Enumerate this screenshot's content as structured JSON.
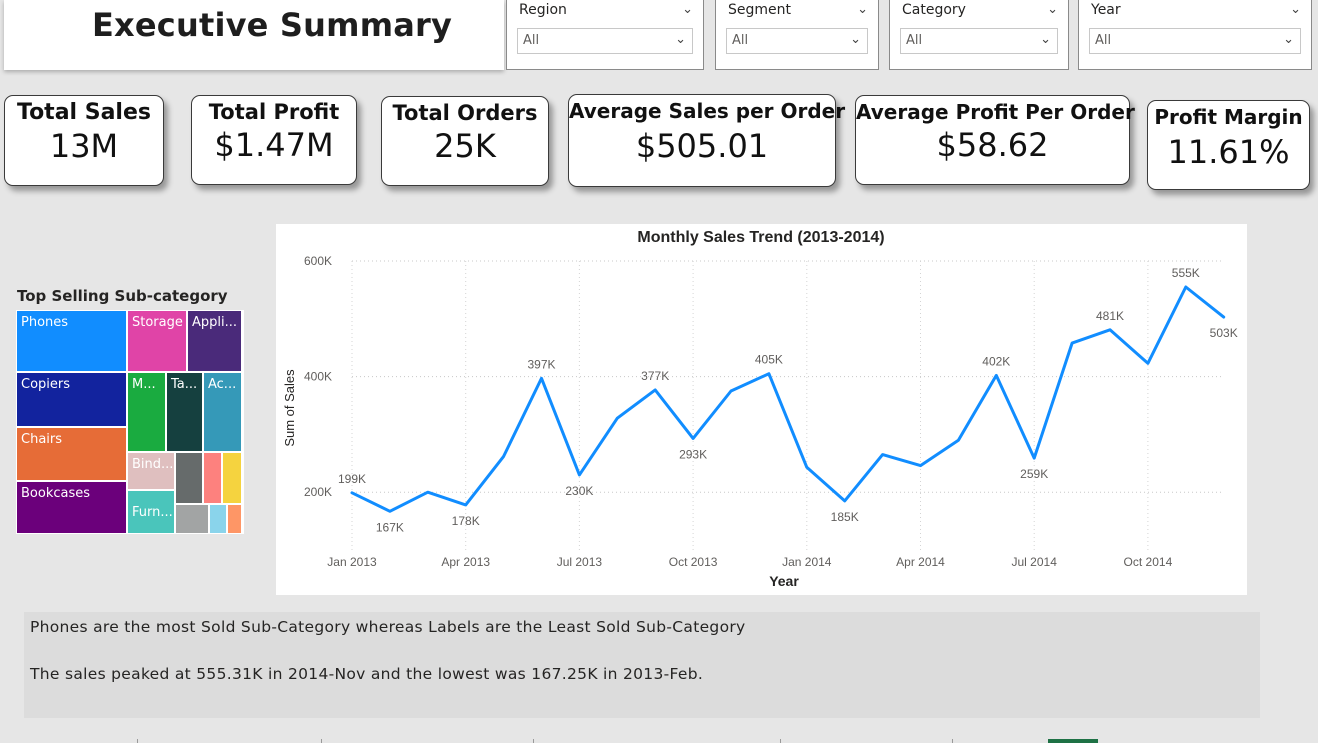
{
  "header": {
    "title": "Executive Summary"
  },
  "slicers": [
    {
      "label": "Region",
      "value": "All"
    },
    {
      "label": "Segment",
      "value": "All"
    },
    {
      "label": "Category",
      "value": "All"
    },
    {
      "label": "Year",
      "value": "All"
    }
  ],
  "kpis": [
    {
      "label": "Total Sales",
      "value": "13M"
    },
    {
      "label": "Total Profit",
      "value": "$1.47M"
    },
    {
      "label": "Total Orders",
      "value": "25K"
    },
    {
      "label": "Average Sales per Order",
      "value": "$505.01"
    },
    {
      "label": "Average Profit Per Order",
      "value": "$58.62"
    },
    {
      "label": "Profit Margin",
      "value": "11.61%"
    }
  ],
  "treemap": {
    "title": "Top Selling Sub-category",
    "items": [
      {
        "label": "Phones",
        "color": "#118dff"
      },
      {
        "label": "Storage",
        "color": "#e044a7"
      },
      {
        "label": "Appli...",
        "color": "#4a2a7a"
      },
      {
        "label": "Copiers",
        "color": "#12239e"
      },
      {
        "label": "M...",
        "color": "#1aab40"
      },
      {
        "label": "Ta...",
        "color": "#15403f"
      },
      {
        "label": "Ac...",
        "color": "#3599b8"
      },
      {
        "label": "Chairs",
        "color": "#e66c37"
      },
      {
        "label": "Bind...",
        "color": "#dfbfbf"
      },
      {
        "label": "",
        "color": "#666b6b"
      },
      {
        "label": "",
        "color": "#fd817e"
      },
      {
        "label": "",
        "color": "#f5d33f"
      },
      {
        "label": "Bookcases",
        "color": "#6b007b"
      },
      {
        "label": "Furn...",
        "color": "#4ac5bb"
      },
      {
        "label": "",
        "color": "#a2a4a4"
      },
      {
        "label": "",
        "color": "#8ad4eb"
      },
      {
        "label": "",
        "color": "#fe9666"
      }
    ]
  },
  "chart_data": {
    "type": "line",
    "title": "Monthly Sales Trend (2013-2014)",
    "xlabel": "Year",
    "ylabel": "Sum of Sales",
    "ylim": [
      100000,
      600000
    ],
    "yticks": [
      200000,
      400000,
      600000
    ],
    "ytick_labels": [
      "200K",
      "400K",
      "600K"
    ],
    "x_tick_labels": [
      {
        "index": 0,
        "label": "Jan 2013"
      },
      {
        "index": 3,
        "label": "Apr 2013"
      },
      {
        "index": 6,
        "label": "Jul 2013"
      },
      {
        "index": 9,
        "label": "Oct 2013"
      },
      {
        "index": 12,
        "label": "Jan 2014"
      },
      {
        "index": 15,
        "label": "Apr 2014"
      },
      {
        "index": 18,
        "label": "Jul 2014"
      },
      {
        "index": 21,
        "label": "Oct 2014"
      }
    ],
    "values": [
      199000,
      167000,
      200000,
      178000,
      262000,
      397000,
      230000,
      328000,
      377000,
      293000,
      375000,
      405000,
      243000,
      185000,
      265000,
      246000,
      290000,
      402000,
      259000,
      458000,
      481000,
      423000,
      555000,
      503000
    ],
    "data_labels": [
      {
        "index": 0,
        "label": "199K",
        "pos": "above"
      },
      {
        "index": 1,
        "label": "167K",
        "pos": "below"
      },
      {
        "index": 3,
        "label": "178K",
        "pos": "below"
      },
      {
        "index": 5,
        "label": "397K",
        "pos": "above"
      },
      {
        "index": 6,
        "label": "230K",
        "pos": "below"
      },
      {
        "index": 8,
        "label": "377K",
        "pos": "above"
      },
      {
        "index": 9,
        "label": "293K",
        "pos": "below"
      },
      {
        "index": 11,
        "label": "405K",
        "pos": "above"
      },
      {
        "index": 13,
        "label": "185K",
        "pos": "below"
      },
      {
        "index": 17,
        "label": "402K",
        "pos": "above"
      },
      {
        "index": 18,
        "label": "259K",
        "pos": "below"
      },
      {
        "index": 20,
        "label": "481K",
        "pos": "above"
      },
      {
        "index": 22,
        "label": "555K",
        "pos": "above"
      },
      {
        "index": 23,
        "label": "503K",
        "pos": "below"
      }
    ],
    "line_color": "#118dff",
    "grid": true
  },
  "insights": {
    "line1": "Phones are the most Sold Sub-Category whereas Labels are the Least Sold Sub-Category",
    "line2": "The sales peaked at 555.31K in 2014-Nov and the lowest was 167.25K in 2013-Feb."
  }
}
